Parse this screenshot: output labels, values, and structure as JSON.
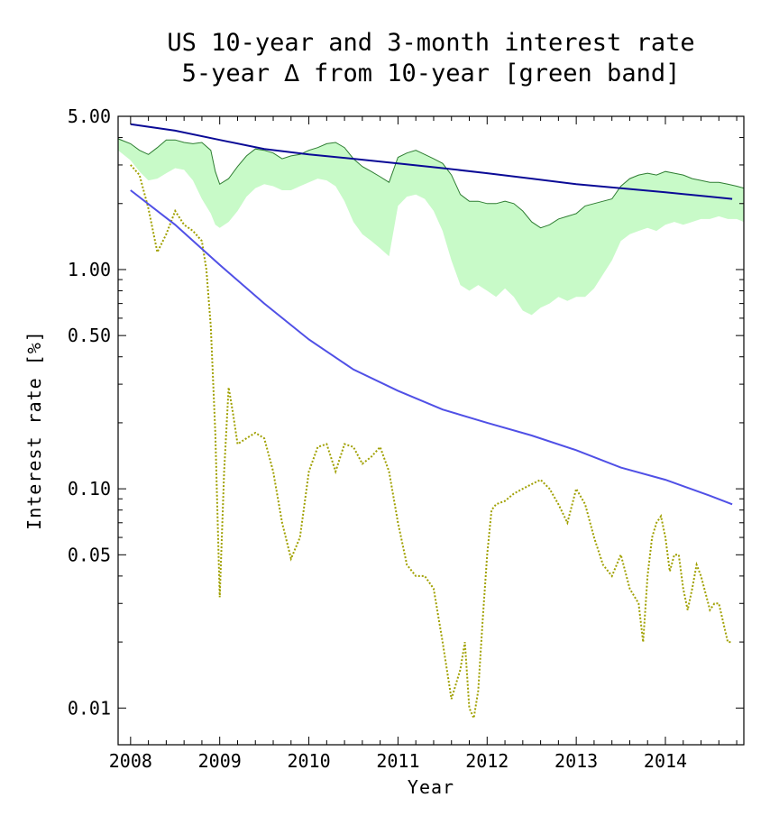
{
  "chart_data": {
    "type": "line",
    "title_lines": [
      "US 10-year and 3-month interest rate",
      "5-year ∆ from 10-year [green band]"
    ],
    "xlabel": "Year",
    "ylabel": "Interest rate [%]",
    "yscale": "log",
    "xlim": [
      2007.86,
      2014.88
    ],
    "ylim": [
      0.0068,
      5.0
    ],
    "xticks": [
      2008,
      2009,
      2010,
      2011,
      2012,
      2013,
      2014
    ],
    "xtick_labels": [
      "2008",
      "2009",
      "2010",
      "2011",
      "2012",
      "2013",
      "2014"
    ],
    "yticks": [
      5.0,
      1.0,
      0.5,
      0.1,
      0.05,
      0.01
    ],
    "ytick_labels": [
      "5.00",
      "1.00",
      "0.50",
      "0.10",
      "0.05",
      "0.01"
    ],
    "grid": false,
    "colors": {
      "band_fill": "#c8fac8",
      "band_edge": "#2e7d32",
      "ten_year_trend": "#0a0a96",
      "three_month_trend": "#5050e6",
      "three_month": "#a0a000"
    },
    "series": [
      {
        "role": "ten_year",
        "style": "thin green line (upper edge of band)",
        "x": [
          2007.86,
          2008.0,
          2008.1,
          2008.2,
          2008.3,
          2008.4,
          2008.5,
          2008.6,
          2008.7,
          2008.8,
          2008.9,
          2008.95,
          2009.0,
          2009.1,
          2009.2,
          2009.3,
          2009.4,
          2009.5,
          2009.6,
          2009.7,
          2009.8,
          2009.9,
          2010.0,
          2010.1,
          2010.2,
          2010.3,
          2010.4,
          2010.5,
          2010.6,
          2010.7,
          2010.8,
          2010.9,
          2011.0,
          2011.1,
          2011.2,
          2011.3,
          2011.4,
          2011.5,
          2011.6,
          2011.7,
          2011.8,
          2011.9,
          2012.0,
          2012.1,
          2012.2,
          2012.3,
          2012.4,
          2012.5,
          2012.6,
          2012.7,
          2012.8,
          2012.9,
          2013.0,
          2013.1,
          2013.2,
          2013.3,
          2013.4,
          2013.5,
          2013.6,
          2013.7,
          2013.8,
          2013.9,
          2014.0,
          2014.1,
          2014.2,
          2014.3,
          2014.4,
          2014.5,
          2014.6,
          2014.7,
          2014.8,
          2014.88
        ],
        "values": [
          3.95,
          3.75,
          3.5,
          3.35,
          3.6,
          3.9,
          3.9,
          3.8,
          3.75,
          3.8,
          3.5,
          2.8,
          2.45,
          2.6,
          2.95,
          3.3,
          3.55,
          3.5,
          3.4,
          3.2,
          3.3,
          3.35,
          3.5,
          3.6,
          3.75,
          3.8,
          3.6,
          3.2,
          2.95,
          2.8,
          2.65,
          2.5,
          3.25,
          3.4,
          3.5,
          3.35,
          3.2,
          3.05,
          2.7,
          2.2,
          2.05,
          2.05,
          2.0,
          2.0,
          2.05,
          2.0,
          1.85,
          1.65,
          1.55,
          1.6,
          1.7,
          1.75,
          1.8,
          1.95,
          2.0,
          2.05,
          2.1,
          2.4,
          2.6,
          2.7,
          2.75,
          2.7,
          2.8,
          2.75,
          2.7,
          2.6,
          2.55,
          2.5,
          2.5,
          2.45,
          2.4,
          2.35
        ]
      },
      {
        "role": "five_year",
        "style": "lower edge of green band",
        "x": [
          2007.86,
          2008.0,
          2008.1,
          2008.2,
          2008.3,
          2008.4,
          2008.5,
          2008.6,
          2008.7,
          2008.8,
          2008.9,
          2008.95,
          2009.0,
          2009.1,
          2009.2,
          2009.3,
          2009.4,
          2009.5,
          2009.6,
          2009.7,
          2009.8,
          2009.9,
          2010.0,
          2010.1,
          2010.2,
          2010.3,
          2010.4,
          2010.5,
          2010.6,
          2010.7,
          2010.8,
          2010.9,
          2011.0,
          2011.1,
          2011.2,
          2011.3,
          2011.4,
          2011.5,
          2011.6,
          2011.7,
          2011.8,
          2011.9,
          2012.0,
          2012.1,
          2012.2,
          2012.3,
          2012.4,
          2012.5,
          2012.6,
          2012.7,
          2012.8,
          2012.9,
          2013.0,
          2013.1,
          2013.2,
          2013.3,
          2013.4,
          2013.5,
          2013.6,
          2013.7,
          2013.8,
          2013.9,
          2014.0,
          2014.1,
          2014.2,
          2014.3,
          2014.4,
          2014.5,
          2014.6,
          2014.7,
          2014.8,
          2014.88
        ],
        "values": [
          3.5,
          3.15,
          2.8,
          2.55,
          2.6,
          2.75,
          2.9,
          2.85,
          2.55,
          2.1,
          1.8,
          1.6,
          1.55,
          1.65,
          1.85,
          2.15,
          2.35,
          2.45,
          2.4,
          2.3,
          2.3,
          2.4,
          2.5,
          2.6,
          2.55,
          2.4,
          2.05,
          1.65,
          1.45,
          1.35,
          1.25,
          1.15,
          1.95,
          2.15,
          2.2,
          2.1,
          1.85,
          1.5,
          1.1,
          0.85,
          0.8,
          0.85,
          0.8,
          0.75,
          0.82,
          0.75,
          0.65,
          0.62,
          0.67,
          0.7,
          0.75,
          0.72,
          0.75,
          0.75,
          0.82,
          0.95,
          1.1,
          1.35,
          1.45,
          1.5,
          1.55,
          1.5,
          1.6,
          1.65,
          1.6,
          1.65,
          1.7,
          1.7,
          1.75,
          1.7,
          1.7,
          1.65
        ]
      },
      {
        "role": "ten_year_trend",
        "style": "dark blue smooth line",
        "x": [
          2008.0,
          2008.5,
          2009.0,
          2009.5,
          2010.0,
          2010.5,
          2011.0,
          2011.5,
          2012.0,
          2012.5,
          2013.0,
          2013.5,
          2014.0,
          2014.5,
          2014.75
        ],
        "values": [
          4.6,
          4.3,
          3.9,
          3.55,
          3.35,
          3.2,
          3.05,
          2.9,
          2.75,
          2.6,
          2.45,
          2.35,
          2.25,
          2.15,
          2.1
        ]
      },
      {
        "role": "three_month_trend",
        "style": "blue smooth line",
        "x": [
          2008.0,
          2008.5,
          2009.0,
          2009.5,
          2010.0,
          2010.5,
          2011.0,
          2011.5,
          2012.0,
          2012.5,
          2013.0,
          2013.5,
          2014.0,
          2014.5,
          2014.75
        ],
        "values": [
          2.3,
          1.6,
          1.05,
          0.7,
          0.48,
          0.35,
          0.28,
          0.23,
          0.2,
          0.175,
          0.15,
          0.125,
          0.11,
          0.093,
          0.085
        ]
      },
      {
        "role": "three_month",
        "style": "olive dotted line",
        "x": [
          2008.0,
          2008.1,
          2008.2,
          2008.3,
          2008.4,
          2008.5,
          2008.6,
          2008.7,
          2008.8,
          2008.85,
          2008.9,
          2008.95,
          2009.0,
          2009.05,
          2009.1,
          2009.15,
          2009.2,
          2009.3,
          2009.4,
          2009.5,
          2009.6,
          2009.7,
          2009.8,
          2009.9,
          2010.0,
          2010.1,
          2010.2,
          2010.3,
          2010.4,
          2010.5,
          2010.6,
          2010.7,
          2010.8,
          2010.9,
          2011.0,
          2011.1,
          2011.2,
          2011.3,
          2011.4,
          2011.5,
          2011.6,
          2011.7,
          2011.75,
          2011.8,
          2011.85,
          2011.9,
          2011.95,
          2012.0,
          2012.05,
          2012.1,
          2012.2,
          2012.3,
          2012.4,
          2012.5,
          2012.6,
          2012.7,
          2012.8,
          2012.9,
          2013.0,
          2013.1,
          2013.2,
          2013.3,
          2013.4,
          2013.5,
          2013.6,
          2013.7,
          2013.75,
          2013.8,
          2013.85,
          2013.9,
          2013.95,
          2014.0,
          2014.05,
          2014.1,
          2014.15,
          2014.2,
          2014.25,
          2014.3,
          2014.35,
          2014.4,
          2014.5,
          2014.55,
          2014.6,
          2014.7,
          2014.75
        ],
        "values": [
          3.0,
          2.7,
          1.9,
          1.2,
          1.45,
          1.85,
          1.6,
          1.5,
          1.35,
          1.0,
          0.55,
          0.18,
          0.032,
          0.12,
          0.29,
          0.22,
          0.16,
          0.17,
          0.18,
          0.17,
          0.12,
          0.07,
          0.048,
          0.06,
          0.12,
          0.155,
          0.16,
          0.12,
          0.16,
          0.155,
          0.13,
          0.14,
          0.155,
          0.12,
          0.07,
          0.045,
          0.04,
          0.04,
          0.035,
          0.02,
          0.011,
          0.015,
          0.02,
          0.01,
          0.009,
          0.012,
          0.025,
          0.05,
          0.08,
          0.085,
          0.088,
          0.095,
          0.1,
          0.105,
          0.11,
          0.1,
          0.085,
          0.07,
          0.1,
          0.085,
          0.06,
          0.045,
          0.04,
          0.05,
          0.035,
          0.03,
          0.02,
          0.04,
          0.06,
          0.07,
          0.075,
          0.06,
          0.042,
          0.05,
          0.05,
          0.035,
          0.028,
          0.035,
          0.045,
          0.04,
          0.028,
          0.03,
          0.03,
          0.02,
          0.02
        ]
      }
    ]
  }
}
